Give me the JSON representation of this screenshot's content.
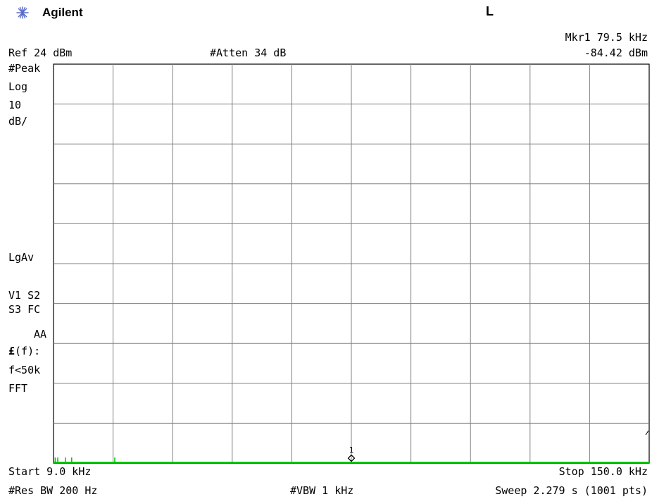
{
  "header": {
    "brand": "Agilent",
    "brand_icon": "agilent-spark-icon",
    "mode_indicator": "L"
  },
  "marker": {
    "label": "Mkr1  79.5 kHz",
    "amplitude": "-84.42 dBm",
    "number": "1",
    "frequency_khz": 79.5,
    "amplitude_dbm": -84.42
  },
  "top_bar": {
    "ref_level": "Ref 24 dBm",
    "attenuation": "#Atten 34 dB"
  },
  "side_annotations": {
    "detector": "#Peak",
    "scale_type": "Log",
    "scale_value": "10",
    "scale_unit": "dB/",
    "average_type": "LgAv",
    "trace_flags_1": "V1  S2",
    "trace_flags_2": "S3  FC",
    "trace_flags_3": "AA",
    "ff_label_symbol": "£",
    "ff_label_suffix": "(f):",
    "ff_condition": "f<50k",
    "ff_mode": "FFT"
  },
  "bottom_bar": {
    "start": "Start 9.0 kHz",
    "stop": "Stop 150.0 kHz",
    "res_bw": "#Res BW 200 Hz",
    "vbw": "#VBW 1 kHz",
    "sweep": "Sweep 2.279 s (1001 pts)"
  },
  "chart_data": {
    "type": "line",
    "x_range_khz": [
      9.0,
      150.0
    ],
    "ref_level_dbm": 24,
    "scale_db_per_div": 10,
    "divisions_x": 10,
    "divisions_y": 10,
    "grid": true,
    "trace_color": "#00c000",
    "grid_color": "#808080",
    "marker_frequency_khz": 79.5,
    "marker_amplitude_dbm": -84.42,
    "trace_floor_dbm": -84.4,
    "trace_spikes_khz": [
      9.4,
      10.0,
      11.8,
      13.3,
      23.5
    ]
  }
}
